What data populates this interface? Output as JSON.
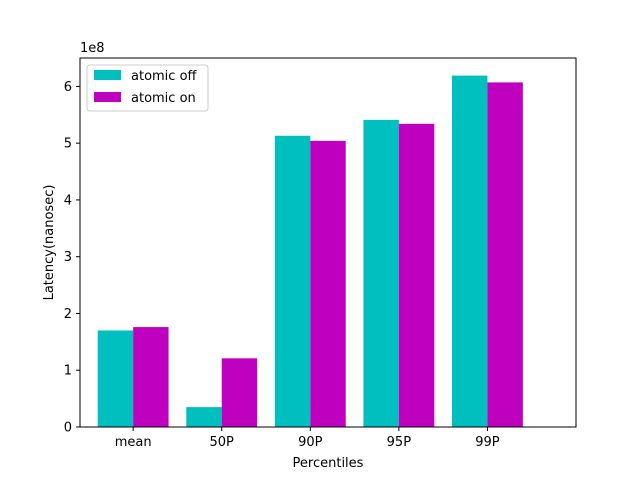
{
  "chart_data": {
    "type": "bar",
    "categories": [
      "mean",
      "50P",
      "90P",
      "95P",
      "99P"
    ],
    "series": [
      {
        "name": "atomic off",
        "color": "#00bfbf",
        "values": [
          170000000.0,
          35000000.0,
          513000000.0,
          541000000.0,
          619000000.0
        ]
      },
      {
        "name": "atomic on",
        "color": "#bf00bf",
        "values": [
          176000000.0,
          121000000.0,
          504000000.0,
          534000000.0,
          607000000.0
        ]
      }
    ],
    "xlabel": "Percentiles",
    "ylabel": "Latency(nanosec)",
    "ylim": [
      0,
      650000000.0
    ],
    "yticks": [
      0,
      100000000.0,
      200000000.0,
      300000000.0,
      400000000.0,
      500000000.0,
      600000000.0
    ],
    "ytick_labels": [
      "0",
      "1",
      "2",
      "3",
      "4",
      "5",
      "6"
    ],
    "offset_label": "1e8",
    "legend_position": "upper-left",
    "grid": false
  }
}
